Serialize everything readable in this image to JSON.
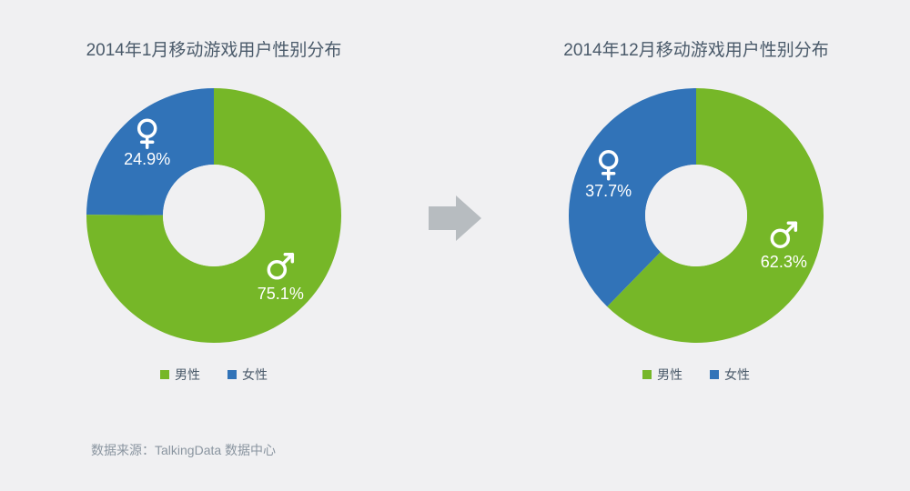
{
  "background_color": "#f0f0f2",
  "title_color": "#4a5a6a",
  "title_fontsize": 19,
  "label_fontsize": 18,
  "legend_fontsize": 14,
  "source_fontsize": 14,
  "source_color": "#8a95a0",
  "arrow_color": "#b7bcc0",
  "donut": {
    "outer_radius": 140,
    "inner_radius": 56,
    "start_angle_deg": -90
  },
  "left_chart": {
    "type": "donut",
    "title": "2014年1月移动游戏用户性别分布",
    "slices": [
      {
        "key": "female",
        "label_pct": "24.9%",
        "value": 24.9,
        "color": "#3173b8",
        "icon": "female"
      },
      {
        "key": "male",
        "label_pct": "75.1%",
        "value": 75.1,
        "color": "#76b728",
        "icon": "male"
      }
    ],
    "legend": [
      {
        "label": "男性",
        "color": "#76b728"
      },
      {
        "label": "女性",
        "color": "#3173b8"
      }
    ],
    "label_text_color": "#ffffff"
  },
  "right_chart": {
    "type": "donut",
    "title": "2014年12月移动游戏用户性别分布",
    "slices": [
      {
        "key": "female",
        "label_pct": "37.7%",
        "value": 37.7,
        "color": "#3173b8",
        "icon": "female"
      },
      {
        "key": "male",
        "label_pct": "62.3%",
        "value": 62.3,
        "color": "#76b728",
        "icon": "male"
      }
    ],
    "legend": [
      {
        "label": "男性",
        "color": "#76b728"
      },
      {
        "label": "女性",
        "color": "#3173b8"
      }
    ],
    "label_text_color": "#ffffff"
  },
  "source_text": "数据来源：TalkingData 数据中心"
}
